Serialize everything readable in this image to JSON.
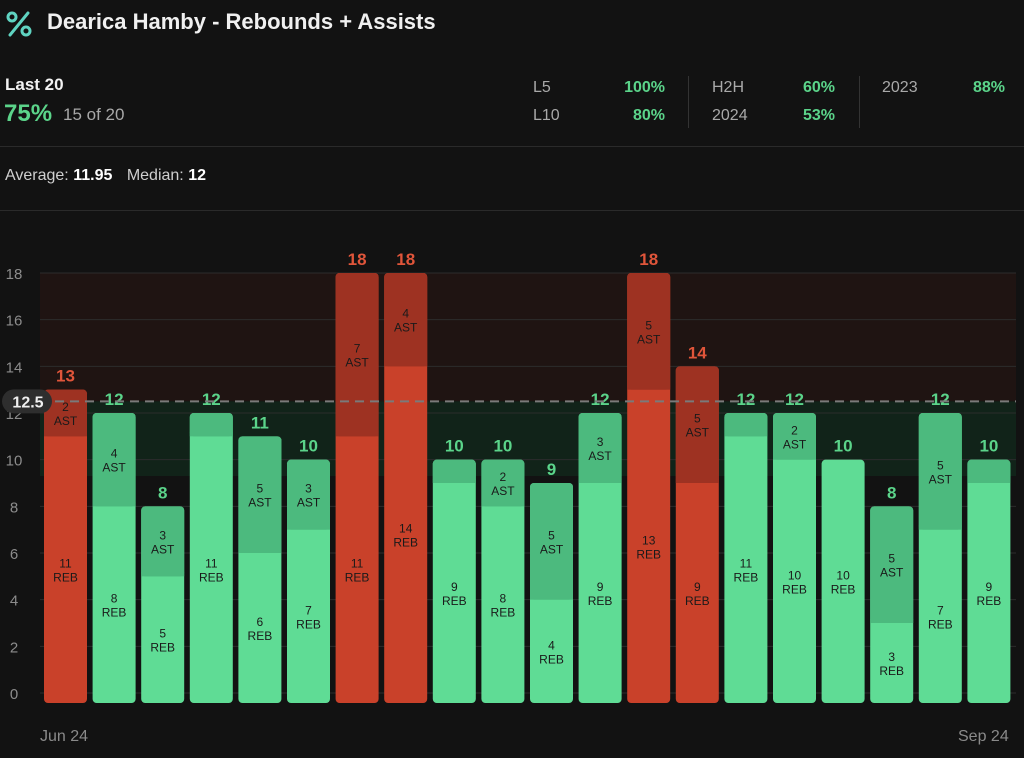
{
  "header": {
    "title": "Dearica Hamby - Rebounds + Assists",
    "icon": "percent-icon"
  },
  "summary": {
    "period_label": "Last 20",
    "hit_pct": "75%",
    "hit_count": "15 of 20",
    "stats": [
      {
        "label": "L5",
        "value": "100%"
      },
      {
        "label": "L10",
        "value": "80%"
      },
      {
        "label": "H2H",
        "value": "60%"
      },
      {
        "label": "2024",
        "value": "53%"
      },
      {
        "label": "2023",
        "value": "88%"
      }
    ]
  },
  "averages": {
    "average_label": "Average:",
    "average_value": "11.95",
    "median_label": "Median:",
    "median_value": "12"
  },
  "colors": {
    "over": "#5fdc95",
    "over_top": "#4cba7e",
    "under": "#c9412a",
    "under_top": "#9e3222",
    "over_label": "#5bd48a",
    "under_label": "#e0553a"
  },
  "chart_data": {
    "type": "bar",
    "stacked": true,
    "line_value": 12.5,
    "line_label": "12.5",
    "ylim": [
      0,
      18
    ],
    "yticks": [
      0,
      2,
      4,
      6,
      8,
      10,
      12,
      14,
      16,
      18
    ],
    "series_labels": {
      "reb": "REB",
      "ast": "AST"
    },
    "x_start_label": "Jun 24",
    "x_end_label": "Sep 24",
    "games": [
      {
        "reb": 11,
        "ast": 2,
        "total": 13
      },
      {
        "reb": 8,
        "ast": 4,
        "total": 12
      },
      {
        "reb": 5,
        "ast": 3,
        "total": 8
      },
      {
        "reb": 11,
        "ast": 1,
        "total": 12
      },
      {
        "reb": 6,
        "ast": 5,
        "total": 11
      },
      {
        "reb": 7,
        "ast": 3,
        "total": 10
      },
      {
        "reb": 11,
        "ast": 7,
        "total": 18
      },
      {
        "reb": 14,
        "ast": 4,
        "total": 18
      },
      {
        "reb": 9,
        "ast": 1,
        "total": 10
      },
      {
        "reb": 8,
        "ast": 2,
        "total": 10
      },
      {
        "reb": 4,
        "ast": 5,
        "total": 9
      },
      {
        "reb": 9,
        "ast": 3,
        "total": 12
      },
      {
        "reb": 13,
        "ast": 5,
        "total": 18
      },
      {
        "reb": 9,
        "ast": 5,
        "total": 14
      },
      {
        "reb": 11,
        "ast": 1,
        "total": 12
      },
      {
        "reb": 10,
        "ast": 2,
        "total": 12
      },
      {
        "reb": 10,
        "ast": 0,
        "total": 10
      },
      {
        "reb": 3,
        "ast": 5,
        "total": 8
      },
      {
        "reb": 7,
        "ast": 5,
        "total": 12
      },
      {
        "reb": 9,
        "ast": 1,
        "total": 10
      }
    ]
  }
}
